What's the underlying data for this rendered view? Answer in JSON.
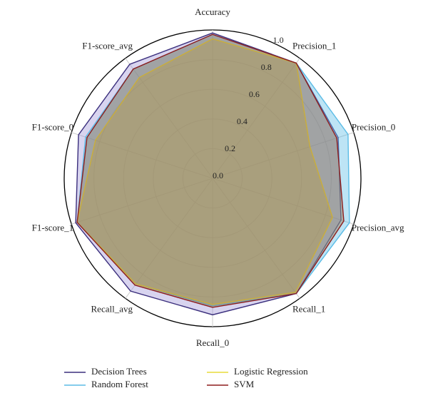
{
  "chart_data": {
    "type": "radar",
    "categories": [
      "Accuracy",
      "Precision_1",
      "Precision_0",
      "Precision_avg",
      "Recall_1",
      "Recall_0",
      "Recall_avg",
      "F1-score_1",
      "F1-score_0",
      "F1-score_avg"
    ],
    "series": [
      {
        "name": "Decision Trees",
        "color": "#3b2f7d",
        "fill": "#9d93d6",
        "values": [
          0.98,
          0.96,
          0.89,
          0.91,
          0.96,
          0.92,
          0.94,
          0.97,
          0.95,
          0.95
        ]
      },
      {
        "name": "Random Forest",
        "color": "#5bbce6",
        "fill": "#5bbce6",
        "values": [
          0.97,
          0.96,
          0.96,
          0.97,
          0.96,
          0.86,
          0.88,
          0.96,
          0.9,
          0.91
        ]
      },
      {
        "name": "Logistic Regression",
        "color": "#e9dc3a",
        "fill": "#c9b84a",
        "values": [
          0.94,
          0.96,
          0.69,
          0.85,
          0.95,
          0.85,
          0.88,
          0.96,
          0.83,
          0.84
        ]
      },
      {
        "name": "SVM",
        "color": "#8e1d1d",
        "fill": "#9a6a3a",
        "values": [
          0.97,
          0.96,
          0.88,
          0.93,
          0.96,
          0.87,
          0.89,
          0.96,
          0.89,
          0.91
        ]
      }
    ],
    "rlim": [
      0,
      1
    ],
    "rticks": [
      {
        "value": 0,
        "label": "0.0"
      },
      0.2,
      0.4,
      0.6,
      0.8,
      {
        "value": 1,
        "label": "1.0"
      }
    ],
    "grid": true
  }
}
